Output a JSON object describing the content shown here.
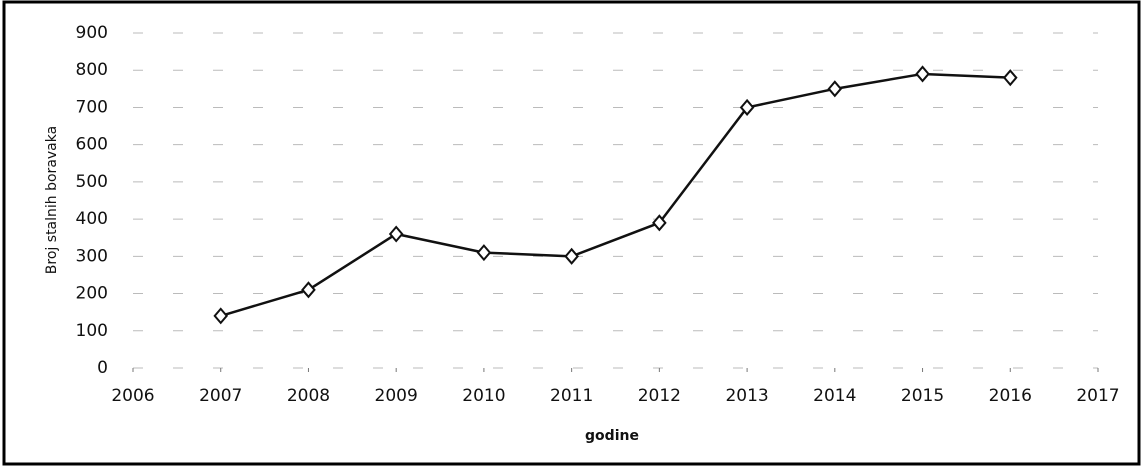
{
  "chart_data": {
    "type": "line",
    "x": [
      2007,
      2008,
      2009,
      2010,
      2011,
      2012,
      2013,
      2014,
      2015,
      2016
    ],
    "series": [
      {
        "name": "Broj stalnih boravaka",
        "color": "#111111",
        "values": [
          140,
          210,
          360,
          310,
          300,
          390,
          700,
          750,
          790,
          780
        ]
      }
    ],
    "xlabel": "godine",
    "ylabel": "Broj stalnih boravaka",
    "xlim": [
      2006,
      2017
    ],
    "xticks": [
      2006,
      2007,
      2008,
      2009,
      2010,
      2011,
      2012,
      2013,
      2014,
      2015,
      2016,
      2017
    ],
    "ylim": [
      0,
      900
    ],
    "yticks": [
      0,
      100,
      200,
      300,
      400,
      500,
      600,
      700,
      800,
      900
    ],
    "grid": true
  }
}
